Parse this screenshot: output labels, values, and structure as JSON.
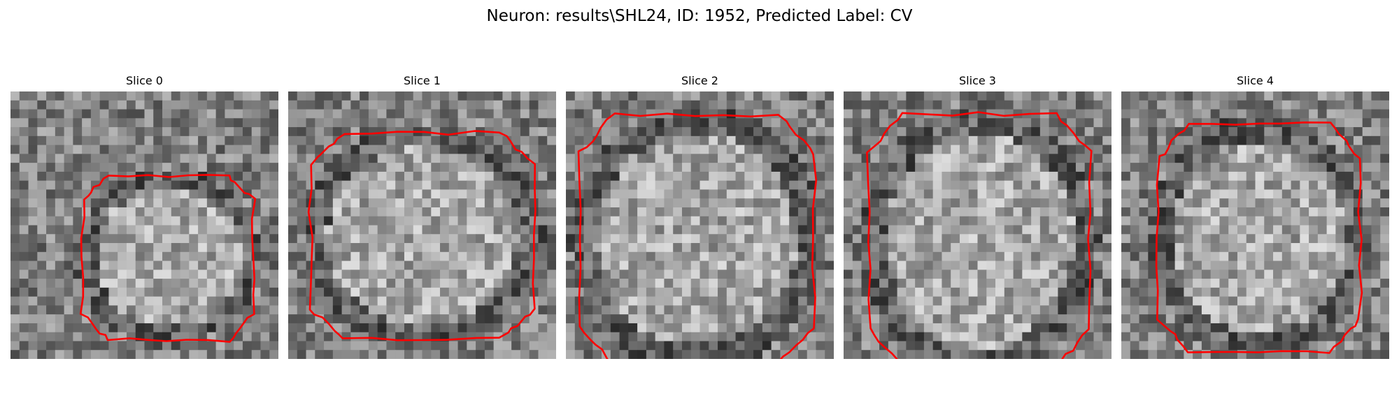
{
  "figure": {
    "title": "Neuron: results\\SHL24, ID: 1952, Predicted Label: CV"
  },
  "colors": {
    "contour": "#ff0000",
    "background": "#ffffff"
  },
  "panels": [
    {
      "title": "Slice 0"
    },
    {
      "title": "Slice 1"
    },
    {
      "title": "Slice 2"
    },
    {
      "title": "Slice 3"
    },
    {
      "title": "Slice 4"
    }
  ]
}
